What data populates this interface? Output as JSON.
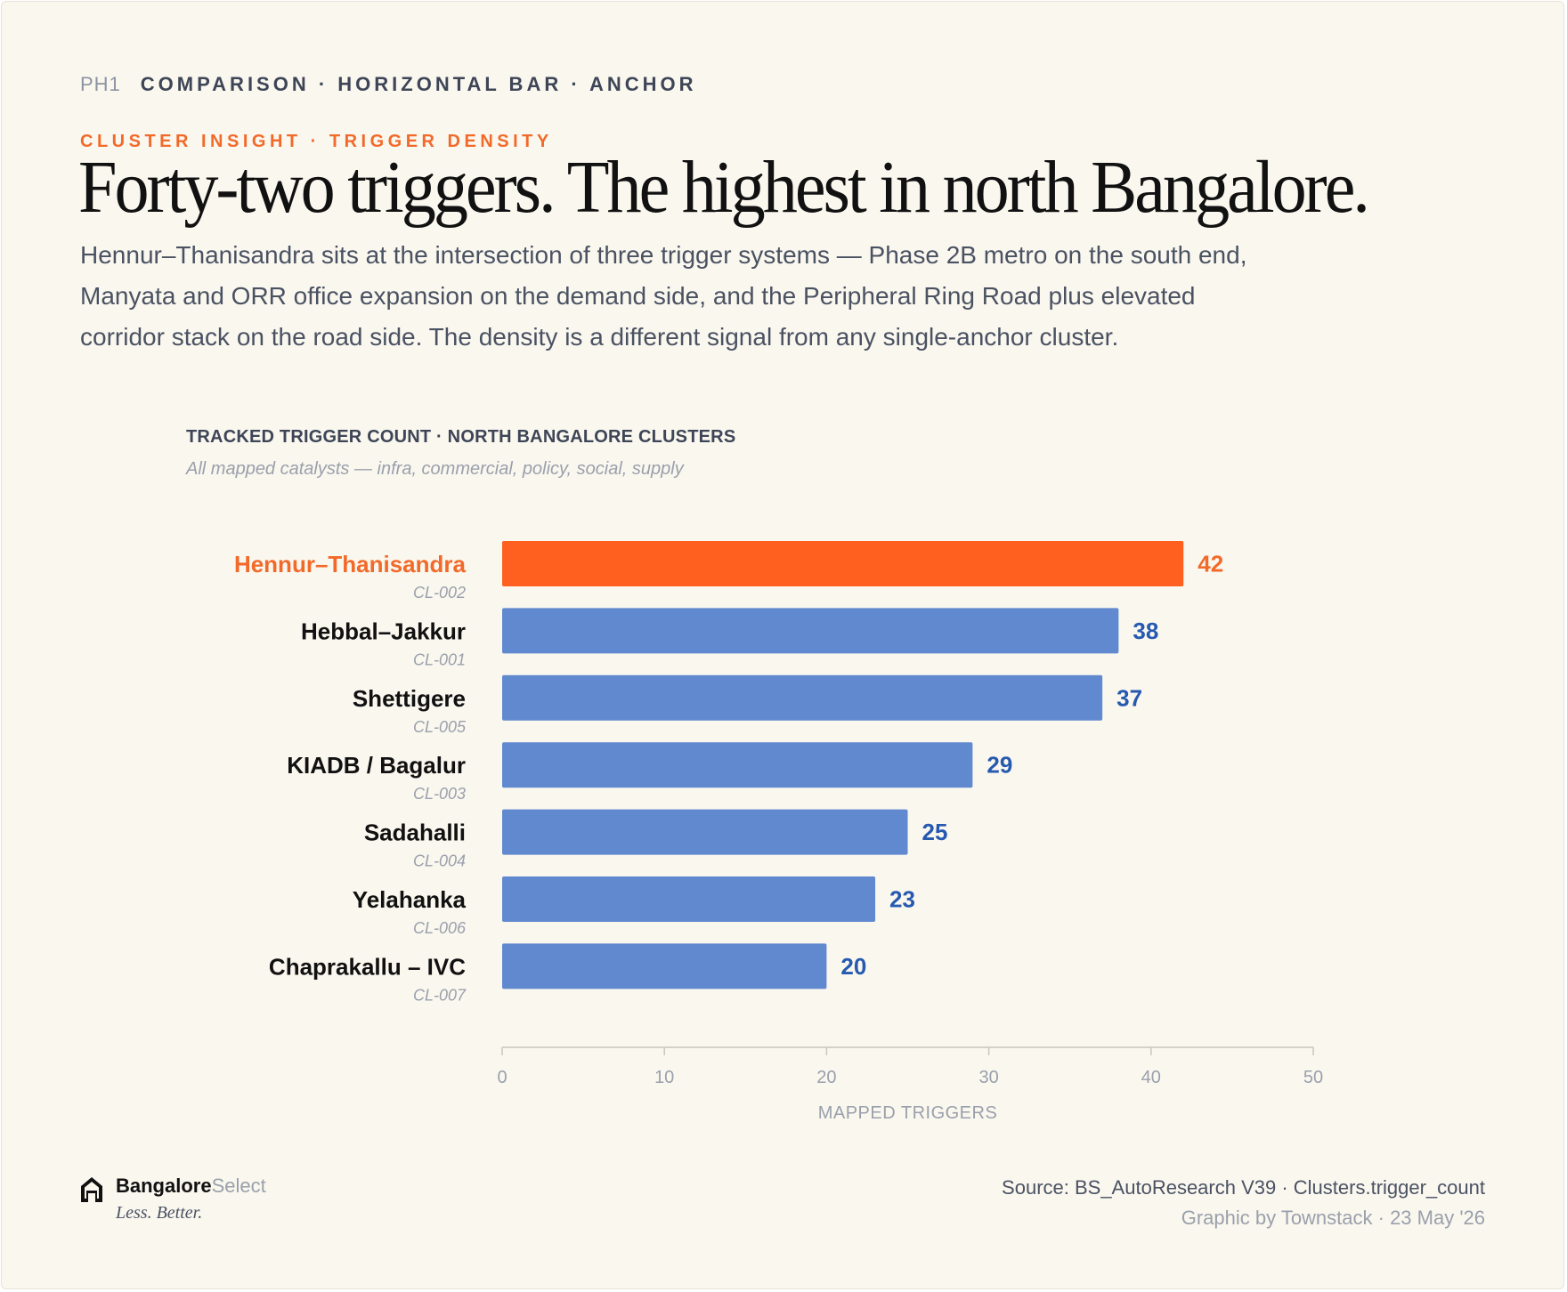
{
  "header": {
    "code": "PH1",
    "kicker": "COMPARISON · HORIZONTAL BAR · ANCHOR",
    "eyebrow": "CLUSTER INSIGHT · TRIGGER DENSITY",
    "headline": "Forty-two triggers. The highest in north Bangalore.",
    "dek": "Hennur–Thanisandra sits at the intersection of three trigger systems — Phase 2B metro on the south end, Manyata and ORR office expansion on the demand side, and the Peripheral Ring Road plus elevated corridor stack on the road side. The density is a different signal from any single-anchor cluster."
  },
  "chart_data": {
    "type": "bar",
    "orientation": "horizontal",
    "title": "TRACKED TRIGGER COUNT · NORTH BANGALORE CLUSTERS",
    "subtitle": "All mapped catalysts — infra, commercial, policy, social, supply",
    "xlabel": "MAPPED TRIGGERS",
    "xlim": [
      0,
      50
    ],
    "xticks": [
      0,
      10,
      20,
      30,
      40,
      50
    ],
    "grid": false,
    "highlight_color": "#ff5f1f",
    "bar_color": "#6089cf",
    "highlight_label_color": "#f26a2a",
    "value_color": "#2659b0",
    "categories": [
      "Hennur–Thanisandra",
      "Hebbal–Jakkur",
      "Shettigere",
      "KIADB / Bagalur",
      "Sadahalli",
      "Yelahanka",
      "Chaprakallu – IVC"
    ],
    "codes": [
      "CL-002",
      "CL-001",
      "CL-005",
      "CL-003",
      "CL-004",
      "CL-006",
      "CL-007"
    ],
    "values": [
      42,
      38,
      37,
      29,
      25,
      23,
      20
    ],
    "highlight": [
      true,
      false,
      false,
      false,
      false,
      false,
      false
    ]
  },
  "footer": {
    "brand_bold": "Bangalore",
    "brand_light": "Select",
    "tagline": "Less. Better.",
    "source": "Source: BS_AutoResearch V39 · Clusters.trigger_count",
    "credit": "Graphic by Townstack · 23 May '26",
    "logo_icon": "house-icon"
  }
}
